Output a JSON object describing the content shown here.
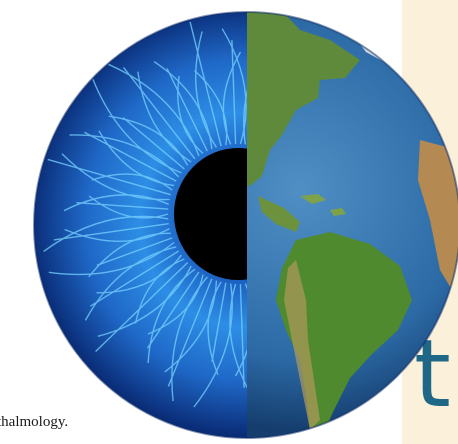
{
  "caption": "thalmology.",
  "side_letter": "t",
  "colors": {
    "panel": "#fbf0d9",
    "letter": "#1f6786",
    "iris_dark": "#0d2f7a",
    "iris_light": "#46c2ff",
    "pupil": "#000000",
    "ocean": "#2f73b0",
    "land": "#6f9a3a"
  }
}
